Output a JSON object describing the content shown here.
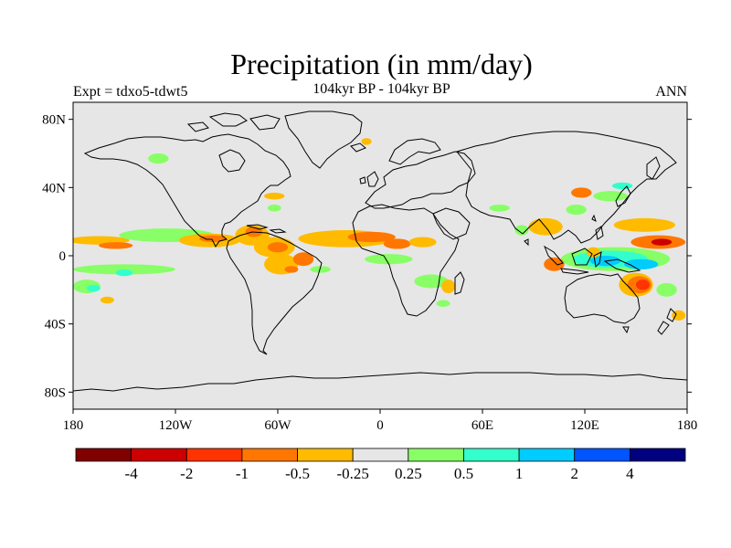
{
  "title": "Precipitation (in mm/day)",
  "subtitle_left": "Expt = tdxo5-tdwt5",
  "subtitle_center": "104kyr BP - 104kyr BP",
  "subtitle_right": "ANN",
  "map": {
    "projection": "cylindrical-equidistant",
    "lon_range": [
      -180,
      180
    ],
    "lat_range": [
      -90,
      90
    ],
    "background_color": "#e6e6e6",
    "coastline_color": "#000000",
    "y_ticks": [
      {
        "lat": 80,
        "label": "80N"
      },
      {
        "lat": 40,
        "label": "40N"
      },
      {
        "lat": 0,
        "label": "0"
      },
      {
        "lat": -40,
        "label": "40S"
      },
      {
        "lat": -80,
        "label": "80S"
      }
    ],
    "x_ticks": [
      {
        "lon": -180,
        "label": "180"
      },
      {
        "lon": -120,
        "label": "120W"
      },
      {
        "lon": -60,
        "label": "60W"
      },
      {
        "lon": 0,
        "label": "0"
      },
      {
        "lon": 60,
        "label": "60E"
      },
      {
        "lon": 120,
        "label": "120E"
      },
      {
        "lon": 180,
        "label": "180"
      }
    ]
  },
  "colorbar": {
    "colors": [
      "#800000",
      "#cc0000",
      "#ff3300",
      "#ff7700",
      "#ffbb00",
      "#e6e6e6",
      "#88ff66",
      "#33ffcc",
      "#00ccff",
      "#0055ff",
      "#000080"
    ],
    "labels": [
      "-4",
      "-2",
      "-1",
      "-0.5",
      "-0.25",
      "0.25",
      "0.5",
      "1",
      "2",
      "4"
    ]
  },
  "anomalies": [
    {
      "lon": -165,
      "lat": 9,
      "rx": 18,
      "ry": 2.5,
      "color": "#ffbb00"
    },
    {
      "lon": -125,
      "lat": 12,
      "rx": 28,
      "ry": 4,
      "color": "#88ff66"
    },
    {
      "lon": -155,
      "lat": 6,
      "rx": 10,
      "ry": 2,
      "color": "#ff7700"
    },
    {
      "lon": -100,
      "lat": 9,
      "rx": 18,
      "ry": 4,
      "color": "#ffbb00"
    },
    {
      "lon": -98,
      "lat": 10,
      "rx": 8,
      "ry": 2,
      "color": "#ff7700"
    },
    {
      "lon": -75,
      "lat": 12,
      "rx": 10,
      "ry": 6,
      "color": "#ffbb00"
    },
    {
      "lon": -74,
      "lat": 14,
      "rx": 5,
      "ry": 3,
      "color": "#ff7700"
    },
    {
      "lon": -62,
      "lat": 5,
      "rx": 12,
      "ry": 6,
      "color": "#ffbb00"
    },
    {
      "lon": -60,
      "lat": 5,
      "rx": 6,
      "ry": 3,
      "color": "#ff7700"
    },
    {
      "lon": -58,
      "lat": -5,
      "rx": 10,
      "ry": 6,
      "color": "#ffbb00"
    },
    {
      "lon": -52,
      "lat": -8,
      "rx": 4,
      "ry": 2,
      "color": "#ff7700"
    },
    {
      "lon": -45,
      "lat": -2,
      "rx": 6,
      "ry": 4,
      "color": "#ff7700"
    },
    {
      "lon": -150,
      "lat": -8,
      "rx": 30,
      "ry": 3,
      "color": "#88ff66"
    },
    {
      "lon": -172,
      "lat": -18,
      "rx": 8,
      "ry": 4,
      "color": "#88ff66"
    },
    {
      "lon": -168,
      "lat": -19,
      "rx": 4,
      "ry": 2,
      "color": "#33ffcc"
    },
    {
      "lon": -150,
      "lat": -10,
      "rx": 5,
      "ry": 2,
      "color": "#33ffcc"
    },
    {
      "lon": -160,
      "lat": -26,
      "rx": 4,
      "ry": 2,
      "color": "#ffbb00"
    },
    {
      "lon": -35,
      "lat": -8,
      "rx": 6,
      "ry": 2,
      "color": "#88ff66"
    },
    {
      "lon": -20,
      "lat": 10,
      "rx": 28,
      "ry": 5,
      "color": "#ffbb00"
    },
    {
      "lon": -5,
      "lat": 11,
      "rx": 14,
      "ry": 3,
      "color": "#ff7700"
    },
    {
      "lon": 10,
      "lat": 7,
      "rx": 8,
      "ry": 3,
      "color": "#ff7700"
    },
    {
      "lon": 25,
      "lat": 8,
      "rx": 8,
      "ry": 3,
      "color": "#ffbb00"
    },
    {
      "lon": 5,
      "lat": -2,
      "rx": 14,
      "ry": 3,
      "color": "#88ff66"
    },
    {
      "lon": 30,
      "lat": -15,
      "rx": 10,
      "ry": 4,
      "color": "#88ff66"
    },
    {
      "lon": 40,
      "lat": -18,
      "rx": 4,
      "ry": 4,
      "color": "#ffbb00"
    },
    {
      "lon": 37,
      "lat": -28,
      "rx": 4,
      "ry": 2,
      "color": "#88ff66"
    },
    {
      "lon": -62,
      "lat": 35,
      "rx": 6,
      "ry": 2,
      "color": "#ffbb00"
    },
    {
      "lon": -62,
      "lat": 28,
      "rx": 4,
      "ry": 2,
      "color": "#88ff66"
    },
    {
      "lon": -130,
      "lat": 57,
      "rx": 6,
      "ry": 3,
      "color": "#88ff66"
    },
    {
      "lon": -8,
      "lat": 67,
      "rx": 3,
      "ry": 2,
      "color": "#ffbb00"
    },
    {
      "lon": 70,
      "lat": 28,
      "rx": 6,
      "ry": 2,
      "color": "#88ff66"
    },
    {
      "lon": 83,
      "lat": 15,
      "rx": 4,
      "ry": 3,
      "color": "#88ff66"
    },
    {
      "lon": 97,
      "lat": 17,
      "rx": 10,
      "ry": 5,
      "color": "#ffbb00"
    },
    {
      "lon": 115,
      "lat": 27,
      "rx": 6,
      "ry": 3,
      "color": "#88ff66"
    },
    {
      "lon": 118,
      "lat": 37,
      "rx": 6,
      "ry": 3,
      "color": "#ff7700"
    },
    {
      "lon": 135,
      "lat": 35,
      "rx": 10,
      "ry": 3,
      "color": "#88ff66"
    },
    {
      "lon": 142,
      "lat": 41,
      "rx": 6,
      "ry": 2,
      "color": "#33ffcc"
    },
    {
      "lon": 155,
      "lat": 18,
      "rx": 18,
      "ry": 4,
      "color": "#ffbb00"
    },
    {
      "lon": 163,
      "lat": 8,
      "rx": 16,
      "ry": 4,
      "color": "#ff7700"
    },
    {
      "lon": 165,
      "lat": 8,
      "rx": 6,
      "ry": 2,
      "color": "#cc0000"
    },
    {
      "lon": 138,
      "lat": -2,
      "rx": 32,
      "ry": 7,
      "color": "#88ff66"
    },
    {
      "lon": 135,
      "lat": -2,
      "rx": 22,
      "ry": 5,
      "color": "#33ffcc"
    },
    {
      "lon": 132,
      "lat": -3,
      "rx": 9,
      "ry": 3,
      "color": "#00ccff"
    },
    {
      "lon": 153,
      "lat": -5,
      "rx": 10,
      "ry": 3,
      "color": "#00ccff"
    },
    {
      "lon": 125,
      "lat": 2,
      "rx": 4,
      "ry": 3,
      "color": "#ffbb00"
    },
    {
      "lon": 150,
      "lat": -17,
      "rx": 10,
      "ry": 7,
      "color": "#ffbb00"
    },
    {
      "lon": 152,
      "lat": -17,
      "rx": 7,
      "ry": 5,
      "color": "#ff7700"
    },
    {
      "lon": 154,
      "lat": -17,
      "rx": 4,
      "ry": 3,
      "color": "#ff3300"
    },
    {
      "lon": 168,
      "lat": -20,
      "rx": 6,
      "ry": 4,
      "color": "#88ff66"
    },
    {
      "lon": 175,
      "lat": -35,
      "rx": 4,
      "ry": 3,
      "color": "#ffbb00"
    },
    {
      "lon": 102,
      "lat": -5,
      "rx": 6,
      "ry": 4,
      "color": "#ff7700"
    }
  ]
}
